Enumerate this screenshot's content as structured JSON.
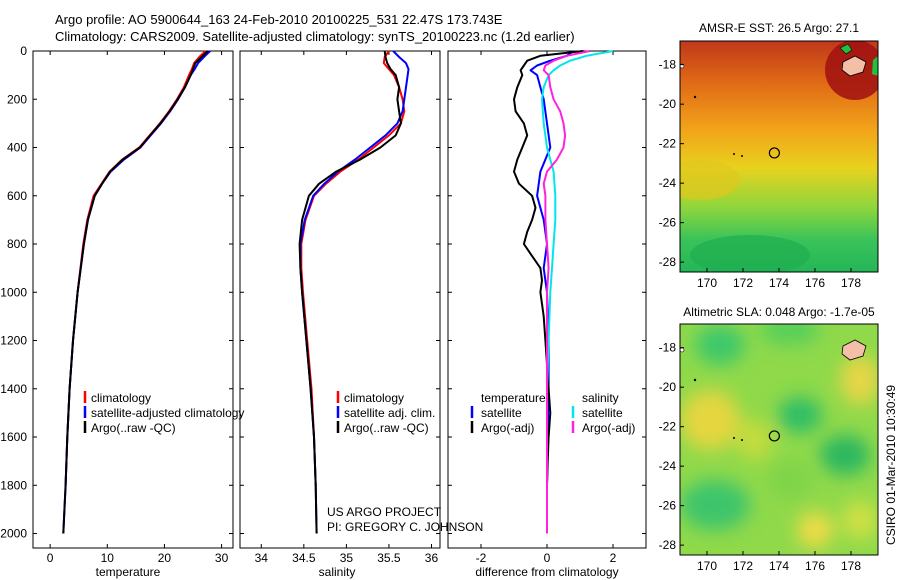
{
  "title": {
    "line1": "Argo profile: AO 5900644_163 24-Feb-2010 20100225_531 22.47S 173.743E",
    "line2": "Climatology: CARS2009. Satellite-adjusted climatology: synTS_20100223.nc (1.2d earlier)"
  },
  "colors": {
    "climatology": "#ff0000",
    "satellite": "#0000ff",
    "argo": "#000000",
    "sal_satellite": "#00e5ee",
    "sal_argo": "#ff22dd"
  },
  "depth_axis": {
    "ticks": [
      0,
      200,
      400,
      600,
      800,
      1000,
      1200,
      1400,
      1600,
      1800,
      2000
    ],
    "ylim": [
      0,
      2060
    ]
  },
  "chart_data": [
    {
      "type": "line",
      "id": "temperature",
      "xlabel": "temperature",
      "xlim": [
        -3,
        32
      ],
      "xticks": [
        0,
        10,
        20,
        30
      ],
      "legend": [
        "climatology",
        "satellite-adjusted climatology",
        "Argo(..raw -QC)"
      ],
      "series": [
        {
          "name": "climatology",
          "color": "#ff0000",
          "depth": [
            0,
            25,
            50,
            75,
            100,
            150,
            200,
            250,
            300,
            350,
            400,
            450,
            500,
            550,
            600,
            700,
            800,
            1000,
            1200,
            1400,
            1600,
            1800
          ],
          "values": [
            27.2,
            26.1,
            25.2,
            24.8,
            24.3,
            23.4,
            22.2,
            20.8,
            19.2,
            17.4,
            15.6,
            12.6,
            10.4,
            9.0,
            7.6,
            6.5,
            5.8,
            4.8,
            4.0,
            3.4,
            3.0,
            2.7
          ]
        },
        {
          "name": "satellite-adjusted climatology",
          "color": "#0000ff",
          "depth": [
            0,
            25,
            50,
            75,
            100,
            150,
            200,
            250,
            300,
            350,
            400,
            450,
            500,
            550,
            600,
            700,
            800,
            1000,
            1200,
            1400,
            1600,
            1800,
            2000
          ],
          "values": [
            28.0,
            26.9,
            25.9,
            25.3,
            24.6,
            23.6,
            22.4,
            21.0,
            19.4,
            17.6,
            15.8,
            12.9,
            10.6,
            9.1,
            7.8,
            6.6,
            5.9,
            4.8,
            4.0,
            3.4,
            3.0,
            2.7,
            2.3
          ]
        },
        {
          "name": "Argo(..raw -QC)",
          "color": "#000000",
          "depth": [
            0,
            25,
            50,
            75,
            100,
            150,
            200,
            250,
            300,
            350,
            400,
            450,
            500,
            550,
            600,
            700,
            800,
            1000,
            1200,
            1400,
            1600,
            1800,
            2000
          ],
          "values": [
            27.6,
            26.5,
            25.4,
            25.0,
            24.6,
            23.6,
            22.3,
            20.9,
            19.3,
            17.5,
            15.7,
            12.7,
            10.5,
            9.1,
            7.8,
            6.6,
            5.9,
            4.8,
            4.0,
            3.4,
            3.0,
            2.7,
            2.3
          ]
        }
      ]
    },
    {
      "type": "line",
      "id": "salinity",
      "xlabel": "salinity",
      "xlim": [
        33.75,
        36.1
      ],
      "xticks": [
        34,
        34.5,
        35,
        35.5,
        36
      ],
      "legend": [
        "climatology",
        "satellite adj. clim.",
        "Argo(..raw -QC)"
      ],
      "series": [
        {
          "name": "climatology",
          "color": "#ff0000",
          "depth": [
            0,
            25,
            50,
            75,
            100,
            150,
            200,
            250,
            300,
            350,
            400,
            450,
            500,
            550,
            600,
            700,
            800,
            900,
            1000,
            1200,
            1400,
            1600,
            1800
          ],
          "values": [
            35.5,
            35.45,
            35.44,
            35.5,
            35.56,
            35.62,
            35.66,
            35.68,
            35.64,
            35.5,
            35.32,
            35.14,
            34.93,
            34.76,
            34.62,
            34.52,
            34.47,
            34.47,
            34.49,
            34.54,
            34.59,
            34.62,
            34.64
          ]
        },
        {
          "name": "satellite adj. clim.",
          "color": "#0000ff",
          "depth": [
            0,
            25,
            50,
            75,
            100,
            150,
            200,
            250,
            300,
            350,
            400,
            450,
            500,
            550,
            600,
            700,
            800,
            900,
            1000,
            1200,
            1400,
            1600,
            1800,
            2000
          ],
          "values": [
            35.55,
            35.62,
            35.7,
            35.73,
            35.72,
            35.7,
            35.68,
            35.66,
            35.6,
            35.46,
            35.28,
            35.1,
            34.9,
            34.74,
            34.61,
            34.51,
            34.46,
            34.46,
            34.48,
            34.53,
            34.58,
            34.62,
            34.64,
            34.65
          ]
        },
        {
          "name": "Argo(..raw -QC)",
          "color": "#000000",
          "depth": [
            0,
            25,
            50,
            75,
            100,
            150,
            200,
            250,
            300,
            350,
            400,
            450,
            500,
            550,
            600,
            700,
            800,
            900,
            1000,
            1200,
            1400,
            1600,
            1800,
            2000
          ],
          "values": [
            35.45,
            35.46,
            35.48,
            35.52,
            35.58,
            35.62,
            35.6,
            35.62,
            35.64,
            35.58,
            35.4,
            35.16,
            34.88,
            34.68,
            34.56,
            34.48,
            34.45,
            34.46,
            34.48,
            34.53,
            34.58,
            34.62,
            34.64,
            34.65
          ]
        }
      ]
    },
    {
      "type": "line",
      "id": "difference",
      "xlabel": "difference from climatology",
      "xlim": [
        -3,
        3
      ],
      "xticks": [
        -2,
        0,
        2
      ],
      "legend_left": {
        "title": "temperature",
        "items": [
          "satellite",
          "Argo(-adj)"
        ]
      },
      "legend_right": {
        "title": "salinity",
        "items": [
          "satellite",
          "Argo(-adj)"
        ]
      },
      "series": [
        {
          "name": "temperature satellite",
          "color": "#0000ff",
          "depth": [
            0,
            20,
            40,
            60,
            80,
            100,
            150,
            200,
            300,
            400,
            500,
            600,
            700,
            800,
            900,
            1000,
            1200,
            1400,
            1600,
            1800,
            2000
          ],
          "values": [
            0.8,
            0.6,
            0.1,
            -0.3,
            -0.5,
            -0.3,
            -0.2,
            -0.1,
            0.0,
            0.1,
            -0.2,
            -0.3,
            -0.1,
            0.0,
            -0.1,
            0.0,
            0.05,
            0.05,
            0.02,
            0.0,
            0.0
          ]
        },
        {
          "name": "temperature Argo(-adj)",
          "color": "#000000",
          "depth": [
            0,
            20,
            40,
            60,
            80,
            100,
            150,
            200,
            250,
            300,
            350,
            400,
            450,
            500,
            550,
            600,
            650,
            700,
            750,
            800,
            850,
            900,
            950,
            1000,
            1100,
            1200,
            1300,
            1400,
            1500,
            1600,
            1700,
            1800,
            1900,
            2000
          ],
          "values": [
            1.1,
            -0.2,
            -0.6,
            -0.7,
            -0.8,
            -0.75,
            -0.9,
            -1.0,
            -0.95,
            -0.7,
            -0.6,
            -0.75,
            -0.9,
            -1.0,
            -0.85,
            -0.45,
            -0.35,
            -0.45,
            -0.6,
            -0.7,
            -0.45,
            -0.2,
            -0.15,
            -0.2,
            -0.1,
            -0.05,
            0.0,
            0.05,
            0.1,
            0.05,
            0.02,
            0.0,
            0.0,
            0.0
          ]
        },
        {
          "name": "salinity satellite",
          "color": "#00e5ee",
          "depth": [
            0,
            20,
            40,
            60,
            80,
            100,
            150,
            200,
            300,
            400,
            500,
            600,
            700,
            800,
            900,
            1000,
            1200,
            1400,
            1600,
            1800,
            2000
          ],
          "values": [
            2.0,
            1.2,
            0.7,
            0.4,
            0.2,
            0.05,
            -0.1,
            -0.15,
            -0.1,
            0.0,
            0.2,
            0.25,
            0.25,
            0.2,
            0.15,
            0.1,
            0.05,
            0.0,
            0.0,
            0.0,
            0.0
          ]
        },
        {
          "name": "salinity Argo(-adj)",
          "color": "#ff22dd",
          "depth": [
            0,
            20,
            40,
            60,
            80,
            100,
            150,
            200,
            250,
            300,
            350,
            400,
            450,
            500,
            550,
            600,
            700,
            800,
            900,
            1000,
            1200,
            1400,
            1600,
            1800,
            2000
          ],
          "values": [
            1.3,
            0.6,
            0.2,
            -0.05,
            -0.1,
            0.05,
            0.1,
            0.2,
            0.4,
            0.5,
            0.55,
            0.5,
            0.3,
            0.0,
            -0.1,
            -0.05,
            -0.05,
            0.0,
            0.05,
            0.0,
            0.0,
            0.0,
            0.0,
            0.0,
            0.0
          ]
        }
      ]
    },
    {
      "type": "heatmap",
      "id": "sst-map",
      "title": "AMSR-E SST: 26.5  Argo: 27.1",
      "xticks": [
        170,
        172,
        174,
        176,
        178
      ],
      "yticks": [
        -18,
        -20,
        -22,
        -24,
        -26,
        -28
      ],
      "xlim": [
        168.5,
        179.5
      ],
      "ylim": [
        -28.5,
        -16.8
      ],
      "marker": {
        "lon": 173.743,
        "lat": -22.47
      }
    },
    {
      "type": "heatmap",
      "id": "sla-map",
      "title": "Altimetric SLA: 0.048  Argo: -1.7e-05",
      "xticks": [
        170,
        172,
        174,
        176,
        178
      ],
      "yticks": [
        -18,
        -20,
        -22,
        -24,
        -26,
        -28
      ],
      "xlim": [
        168.5,
        179.5
      ],
      "ylim": [
        -28.5,
        -16.8
      ],
      "marker": {
        "lon": 173.743,
        "lat": -22.47
      }
    }
  ],
  "project": {
    "line1": "US ARGO PROJECT",
    "line2": "PI: GREGORY C. JOHNSON"
  },
  "footer": "CSIRO 01-Mar-2010 10:30:49"
}
